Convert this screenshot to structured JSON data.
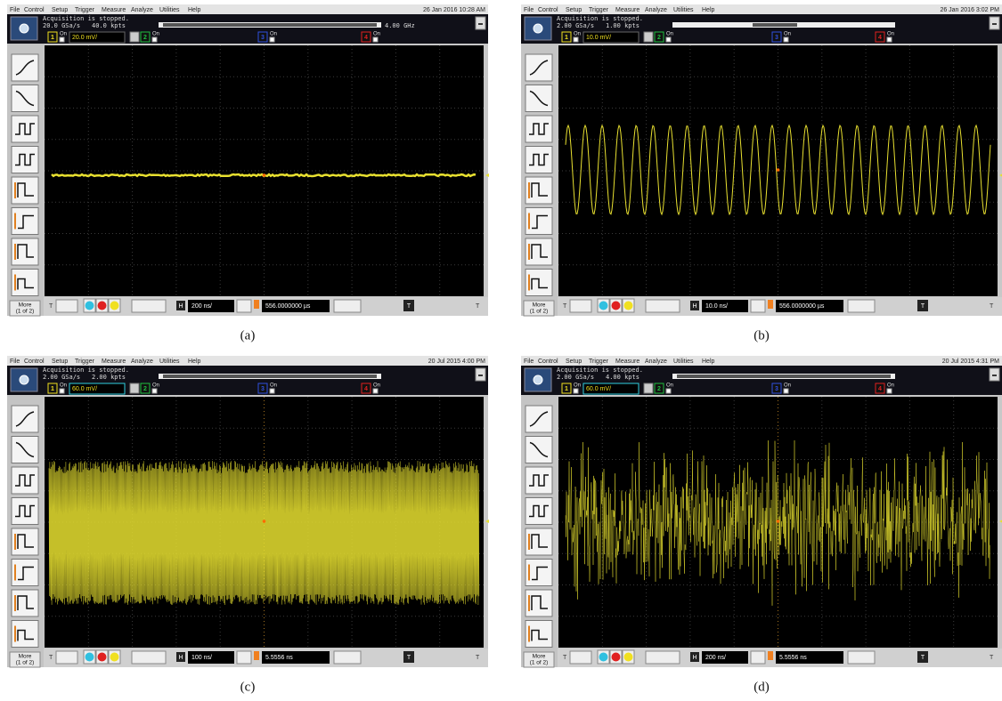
{
  "menu": [
    "File",
    "Control",
    "Setup",
    "Trigger",
    "Measure",
    "Analyze",
    "Utilities",
    "Help"
  ],
  "channels": [
    {
      "number": "1",
      "state": "On"
    },
    {
      "number": "2",
      "state": "On"
    },
    {
      "number": "3",
      "state": "On"
    },
    {
      "number": "4",
      "state": "On"
    }
  ],
  "trigger_label": "T",
  "horizontal_label": "H",
  "more": "More",
  "more_page": "(1 of 2)",
  "panels": [
    {
      "caption": "(a)",
      "date": "26 Jan 2016 10:28 AM",
      "status": "Acquisition is stopped.",
      "rate": "20.0 GSa/s",
      "points": "40.0 kpts",
      "bandwidth": "4.00 GHz",
      "scale": "20.0 mV/",
      "timebase": "200 ns/",
      "position": "556.0000000 µs"
    },
    {
      "caption": "(b)",
      "date": "26 Jan 2016 3:02 PM",
      "status": "Acquisition is stopped.",
      "rate": "2.00 GSa/s",
      "points": "1.00 kpts",
      "scale": "10.0 mV/",
      "timebase": "10.0 ns/",
      "position": "556.0000000 µs"
    },
    {
      "caption": "(c)",
      "date": "20 Jul 2015 4:00 PM",
      "status": "Acquisition is stopped.",
      "rate": "2.00 GSa/s",
      "points": "2.00 kpts",
      "scale": "60.0 mV/",
      "timebase": "100 ns/",
      "position": "5.5556 ns"
    },
    {
      "caption": "(d)",
      "date": "20 Jul 2015 4:31 PM",
      "status": "Acquisition is stopped.",
      "rate": "2.00 GSa/s",
      "points": "4.00 kpts",
      "scale": "60.0 mV/",
      "timebase": "200 ns/",
      "position": "5.5556 ns"
    }
  ]
}
